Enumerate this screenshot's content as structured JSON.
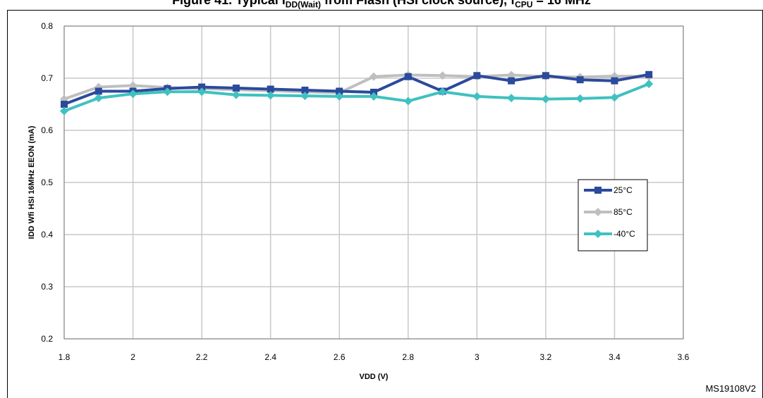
{
  "title": {
    "prefix": "Figure 41. Typical I",
    "sub1": "DD(Wait)",
    "middle": " from Flash (HSI clock source), f",
    "sub2": "CPU",
    "suffix": " = 16 MHz"
  },
  "reference": "MS19108V2",
  "colors": {
    "s25": "#2b4a9c",
    "s85": "#bfbfbf",
    "sm40": "#3fc1c0",
    "grid": "#c8c8c8",
    "frame": "#808080"
  },
  "chart_data": {
    "type": "line",
    "title": "",
    "xlabel": "VDD (V)",
    "ylabel": "IDD Wfi HSI 16MHz EEON (mA)",
    "xlim": [
      1.8,
      3.6
    ],
    "ylim": [
      0.2,
      0.8
    ],
    "xticks": [
      "1.8",
      "2",
      "2.2",
      "2.4",
      "2.6",
      "2.8",
      "3",
      "3.2",
      "3.4",
      "3.6"
    ],
    "yticks": [
      "0.2",
      "0.3",
      "0.4",
      "0.5",
      "0.6",
      "0.7",
      "0.8"
    ],
    "grid": true,
    "legend_position": "right",
    "x": [
      1.8,
      1.9,
      2.0,
      2.1,
      2.2,
      2.3,
      2.4,
      2.5,
      2.6,
      2.7,
      2.8,
      2.9,
      3.0,
      3.1,
      3.2,
      3.3,
      3.4,
      3.5
    ],
    "series": [
      {
        "name": "25°C",
        "marker": "square",
        "color": "#2b4a9c",
        "values": [
          0.65,
          0.675,
          0.675,
          0.68,
          0.683,
          0.681,
          0.679,
          0.677,
          0.675,
          0.673,
          0.703,
          0.675,
          0.705,
          0.695,
          0.705,
          0.697,
          0.695,
          0.707
        ]
      },
      {
        "name": "85°C",
        "marker": "diamond",
        "color": "#bfbfbf",
        "values": [
          0.66,
          0.683,
          0.686,
          0.682,
          0.68,
          0.678,
          0.676,
          0.674,
          0.672,
          0.703,
          0.706,
          0.705,
          0.703,
          0.706,
          0.703,
          0.702,
          0.704,
          0.703
        ]
      },
      {
        "name": "-40°C",
        "marker": "diamond",
        "color": "#3fc1c0",
        "values": [
          0.637,
          0.662,
          0.67,
          0.674,
          0.674,
          0.668,
          0.667,
          0.666,
          0.665,
          0.665,
          0.656,
          0.674,
          0.665,
          0.662,
          0.66,
          0.661,
          0.663,
          0.689
        ]
      }
    ]
  }
}
